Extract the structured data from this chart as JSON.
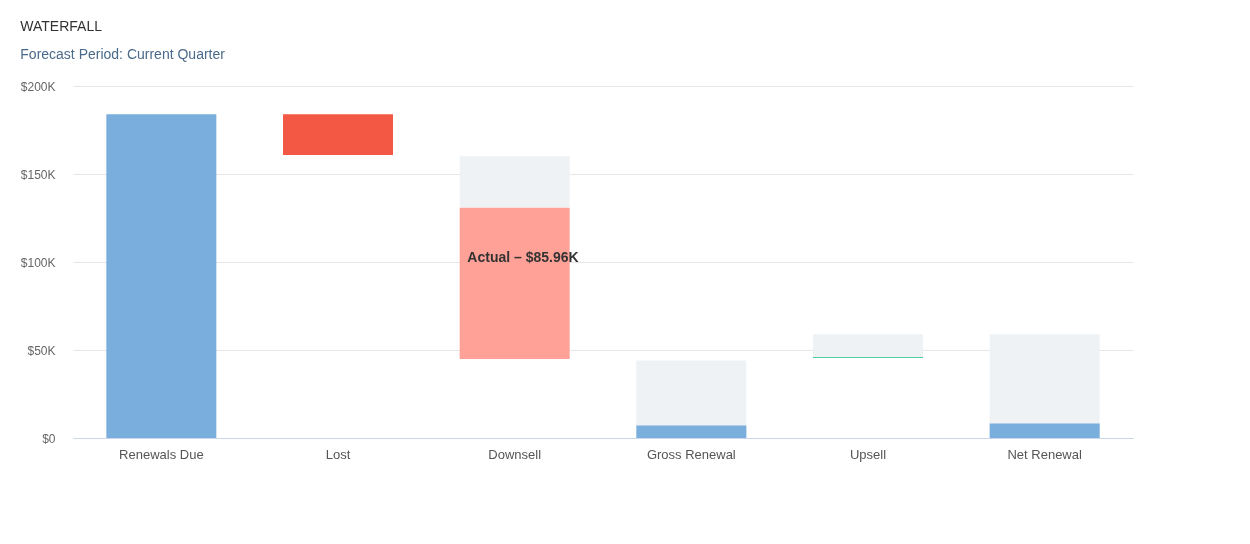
{
  "chart_data": {
    "type": "bar",
    "title": "WATERFALL",
    "subtitle": "Forecast Period: Current Quarter",
    "categories": [
      "Renewals Due",
      "Lost",
      "Downsell",
      "Gross Renewal",
      "Upsell",
      "Net Renewal"
    ],
    "series": [
      {
        "color": "#eef2f5",
        "values": [
          null,
          null,
          29.2,
          44.1,
          13.4,
          58.9
        ],
        "base": [
          null,
          null,
          130.9,
          0,
          45.5,
          0
        ]
      },
      {
        "colors": [
          "#7aaedc",
          "#f25843",
          "#ffa197",
          "#7aaedc",
          "#4ccf9f",
          "#7aaedc"
        ],
        "values": [
          184.0,
          23.2,
          85.96,
          7.1,
          0.6,
          8.3
        ],
        "base": [
          0,
          160.8,
          44.9,
          0,
          45.4,
          0
        ]
      }
    ],
    "ylim": [
      0,
      200
    ],
    "yticks": [
      {
        "value": 0,
        "label": "$0"
      },
      {
        "value": 50,
        "label": "$50K"
      },
      {
        "value": 100,
        "label": "$100K"
      },
      {
        "value": 150,
        "label": "$150K"
      },
      {
        "value": 200,
        "label": "$200K"
      }
    ],
    "annotations": [
      "Actual – $85.96K"
    ],
    "grid": "y"
  }
}
